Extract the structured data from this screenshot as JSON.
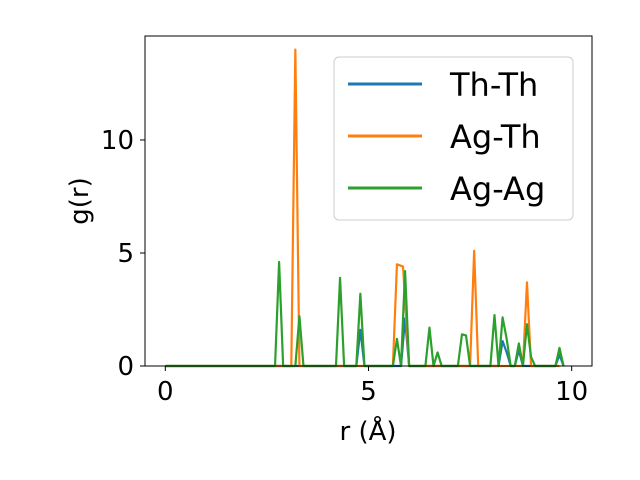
{
  "chart_data": {
    "type": "line",
    "xlabel": "r (Å)",
    "ylabel": "g(r)",
    "xlim": [
      -0.5,
      10.5
    ],
    "ylim": [
      0,
      14.6
    ],
    "xticks": [
      0,
      5,
      10
    ],
    "yticks": [
      0,
      5,
      10
    ],
    "grid": false,
    "legend_position": "top-right",
    "series": [
      {
        "name": "Th-Th",
        "color": "#1f77b4",
        "x": [
          0,
          4.7,
          4.8,
          4.9,
          5.8,
          5.9,
          6.0,
          8.2,
          8.3,
          8.4,
          8.5,
          8.6,
          8.7,
          8.8,
          9.6,
          9.7,
          9.8
        ],
        "y": [
          0,
          0,
          1.6,
          0,
          0,
          2.1,
          0,
          0,
          1.1,
          0.6,
          0,
          0,
          0.7,
          0,
          0,
          0.5,
          0
        ]
      },
      {
        "name": "Ag-Th",
        "color": "#ff7f0e",
        "x": [
          0,
          3.1,
          3.2,
          3.3,
          5.6,
          5.7,
          5.85,
          6.0,
          7.5,
          7.6,
          7.7,
          8.8,
          8.9,
          9.0,
          9.7
        ],
        "y": [
          0,
          0,
          14.0,
          0,
          0,
          4.5,
          4.4,
          0,
          0,
          5.1,
          0,
          0,
          3.7,
          0,
          0
        ]
      },
      {
        "name": "Ag-Ag",
        "color": "#2ca02c",
        "x": [
          0,
          2.7,
          2.8,
          2.9,
          3.2,
          3.3,
          3.4,
          4.2,
          4.3,
          4.4,
          4.7,
          4.8,
          4.9,
          5.6,
          5.7,
          5.8,
          5.9,
          6.0,
          6.4,
          6.5,
          6.6,
          6.7,
          6.8,
          7.2,
          7.3,
          7.4,
          7.5,
          8.0,
          8.1,
          8.2,
          8.3,
          8.4,
          8.5,
          8.6,
          8.7,
          8.8,
          8.9,
          9.0,
          9.1,
          9.6,
          9.7,
          9.8
        ],
        "y": [
          0,
          0,
          4.6,
          0,
          0,
          2.2,
          0,
          0,
          3.9,
          0,
          0,
          3.2,
          0,
          0,
          1.2,
          0,
          4.2,
          0,
          0,
          1.7,
          0,
          0.6,
          0,
          0,
          1.4,
          1.35,
          0,
          0,
          2.25,
          0,
          2.15,
          1.2,
          0,
          0,
          1.0,
          0,
          1.85,
          0.4,
          0,
          0,
          0.8,
          0
        ]
      }
    ]
  }
}
